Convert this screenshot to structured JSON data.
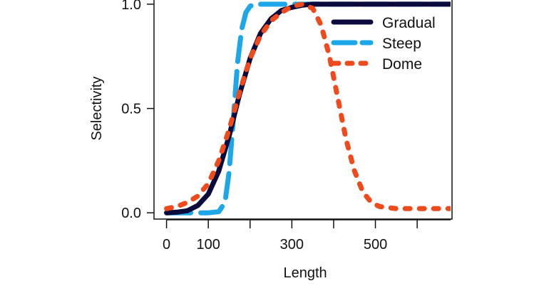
{
  "chart_data": {
    "type": "line",
    "xlabel": "Length",
    "ylabel": "Selectivity",
    "xlim": [
      -30,
      680
    ],
    "ylim": [
      -0.03,
      1.02
    ],
    "x_ticks": [
      0,
      100,
      200,
      300,
      400,
      500,
      600
    ],
    "x_tick_labels": [
      "0",
      "100",
      "",
      "300",
      "",
      "500",
      ""
    ],
    "y_ticks": [
      0.0,
      0.5,
      1.0
    ],
    "y_tick_labels": [
      "0.0",
      "0.5",
      "1.0"
    ],
    "grid": false,
    "legend_position": "top-right",
    "series": [
      {
        "name": "Gradual",
        "color": "#0a0a3c",
        "style": "solid",
        "x": [
          0,
          25,
          50,
          75,
          100,
          125,
          150,
          175,
          200,
          225,
          250,
          275,
          300,
          325,
          350,
          400,
          450,
          500,
          550,
          600,
          680
        ],
        "y": [
          0.0,
          0.003,
          0.01,
          0.035,
          0.09,
          0.2,
          0.37,
          0.57,
          0.74,
          0.86,
          0.93,
          0.97,
          0.985,
          0.995,
          1.0,
          1.0,
          1.0,
          1.0,
          1.0,
          1.0,
          1.0
        ]
      },
      {
        "name": "Steep",
        "color": "#1ea7e8",
        "style": "dashed",
        "x": [
          0,
          50,
          100,
          125,
          140,
          150,
          160,
          170,
          180,
          190,
          200,
          210,
          220,
          240,
          260,
          300,
          400,
          500,
          600,
          680
        ],
        "y": [
          0.0,
          0.0,
          0.0,
          0.005,
          0.05,
          0.2,
          0.45,
          0.72,
          0.88,
          0.96,
          0.99,
          1.0,
          1.0,
          1.0,
          1.0,
          1.0,
          1.0,
          1.0,
          1.0,
          1.0
        ]
      },
      {
        "name": "Dome",
        "color": "#ee4a1c",
        "style": "dotted",
        "x": [
          0,
          25,
          50,
          75,
          100,
          125,
          150,
          175,
          200,
          225,
          250,
          275,
          300,
          325,
          350,
          370,
          390,
          410,
          430,
          450,
          470,
          490,
          510,
          550,
          600,
          680
        ],
        "y": [
          0.02,
          0.03,
          0.05,
          0.08,
          0.14,
          0.25,
          0.4,
          0.58,
          0.74,
          0.85,
          0.92,
          0.96,
          0.99,
          1.0,
          0.98,
          0.9,
          0.75,
          0.55,
          0.35,
          0.2,
          0.1,
          0.05,
          0.03,
          0.02,
          0.02,
          0.02
        ]
      }
    ]
  }
}
